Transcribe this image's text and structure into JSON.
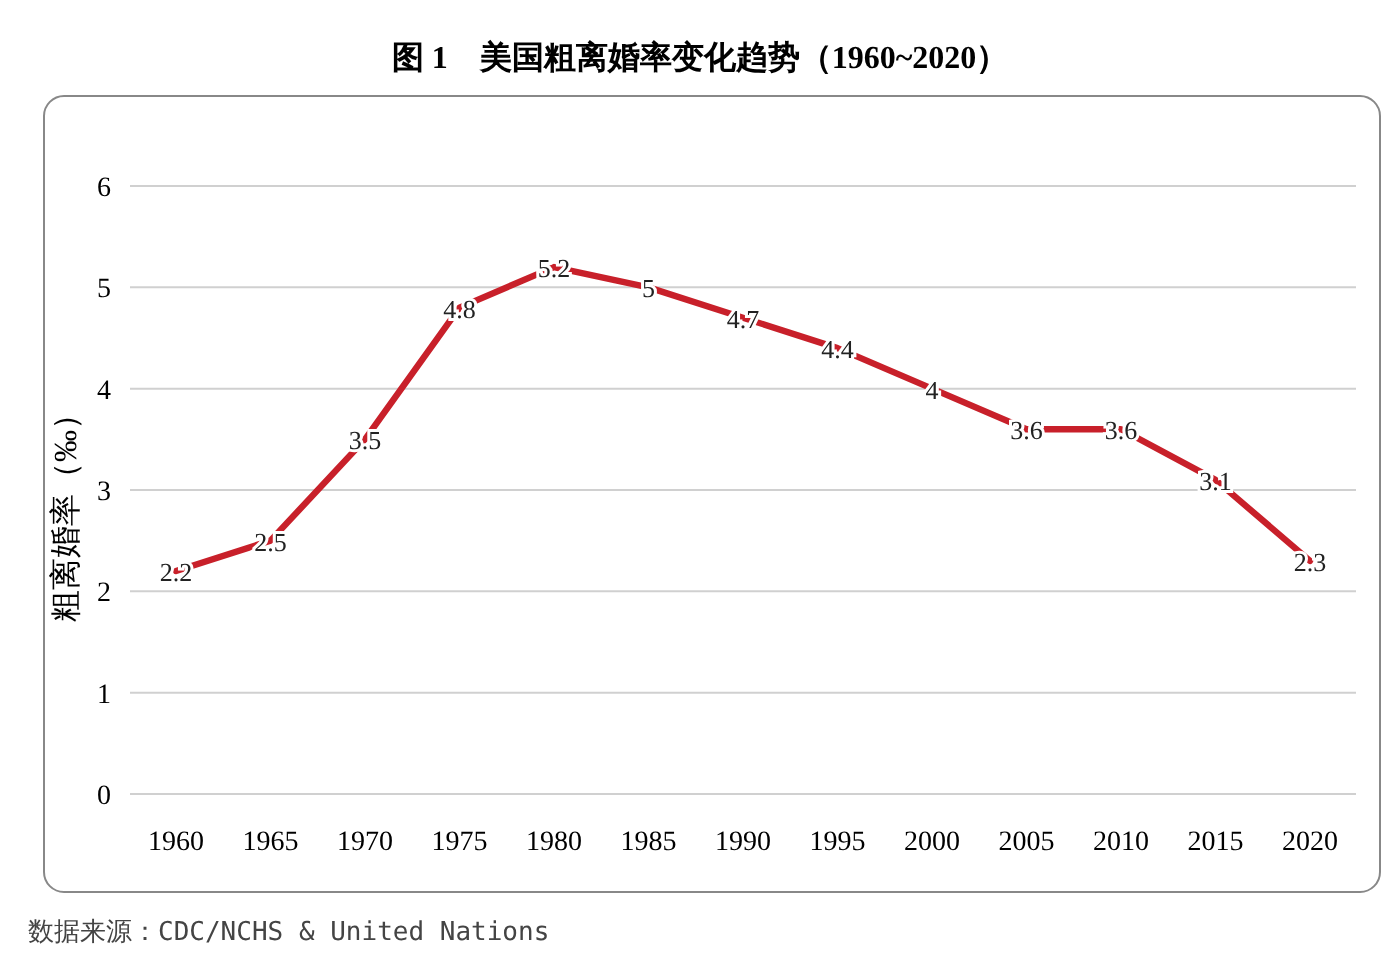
{
  "chart_data": {
    "type": "line",
    "title": "图 1　美国粗离婚率变化趋势（1960~2020）",
    "ylabel": "粗离婚率（‰）",
    "annotations": [
      "数据来源：CDC/NCHS & United Nations"
    ],
    "categories": [
      "1960",
      "1965",
      "1970",
      "1975",
      "1980",
      "1985",
      "1990",
      "1995",
      "2000",
      "2005",
      "2010",
      "2015",
      "2020"
    ],
    "series": [
      {
        "color": "#c8202a",
        "values": [
          2.2,
          2.5,
          3.5,
          4.8,
          5.2,
          5,
          4.7,
          4.4,
          4,
          3.6,
          3.6,
          3.1,
          2.3
        ]
      }
    ],
    "ylim": [
      0,
      6
    ],
    "yticks": [
      0,
      1,
      2,
      3,
      4,
      5,
      6
    ],
    "grid": "y",
    "data_labels": true,
    "marker": "none",
    "line_style": "solid"
  }
}
